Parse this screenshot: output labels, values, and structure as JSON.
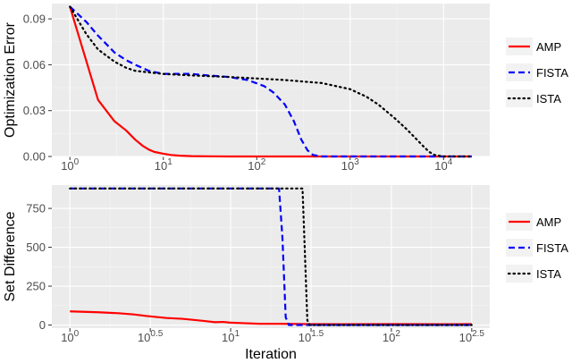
{
  "chart_data": [
    {
      "type": "line",
      "xscale": "log10",
      "xlim": [
        1,
        20000
      ],
      "ylim": [
        0,
        0.1
      ],
      "xticks": [
        {
          "value": 1,
          "base": "10",
          "exp": "0"
        },
        {
          "value": 10,
          "base": "10",
          "exp": "1"
        },
        {
          "value": 100,
          "base": "10",
          "exp": "2"
        },
        {
          "value": 1000,
          "base": "10",
          "exp": "3"
        },
        {
          "value": 10000,
          "base": "10",
          "exp": "4"
        }
      ],
      "yticks": [
        {
          "value": 0.0,
          "label": "0.00"
        },
        {
          "value": 0.03,
          "label": "0.03"
        },
        {
          "value": 0.06,
          "label": "0.06"
        },
        {
          "value": 0.09,
          "label": "0.09"
        }
      ],
      "xlabel": "",
      "ylabel": "Optimization Error",
      "grid": true,
      "legend": "right",
      "series": [
        {
          "name": "AMP",
          "color": "#ff0000",
          "dash": "solid",
          "x": [
            1,
            2,
            3,
            4,
            5,
            6,
            7,
            8,
            10,
            12,
            15,
            20,
            30,
            50,
            100,
            1000,
            20000
          ],
          "y": [
            0.098,
            0.037,
            0.023,
            0.017,
            0.011,
            0.007,
            0.0045,
            0.003,
            0.0018,
            0.001,
            0.0005,
            0.0002,
            0.0001,
            0,
            0,
            0,
            0
          ]
        },
        {
          "name": "FISTA",
          "color": "#0000ff",
          "dash": "dashed",
          "x": [
            1,
            1.5,
            2,
            2.5,
            3,
            4,
            5,
            7,
            10,
            15,
            20,
            30,
            50,
            80,
            120,
            150,
            200,
            250,
            300,
            350,
            400,
            500,
            1000,
            20000
          ],
          "y": [
            0.098,
            0.088,
            0.079,
            0.073,
            0.068,
            0.063,
            0.06,
            0.056,
            0.054,
            0.054,
            0.054,
            0.053,
            0.052,
            0.05,
            0.046,
            0.042,
            0.034,
            0.023,
            0.011,
            0.004,
            0.001,
            0,
            0,
            0
          ]
        },
        {
          "name": "ISTA",
          "color": "#000000",
          "dash": "dotted",
          "x": [
            1,
            1.5,
            2,
            3,
            4,
            5,
            7,
            10,
            20,
            50,
            100,
            200,
            500,
            1000,
            1500,
            2000,
            3000,
            4000,
            5000,
            6000,
            7000,
            8000,
            10000,
            20000
          ],
          "y": [
            0.098,
            0.08,
            0.07,
            0.062,
            0.058,
            0.056,
            0.055,
            0.054,
            0.053,
            0.052,
            0.051,
            0.05,
            0.048,
            0.044,
            0.039,
            0.034,
            0.025,
            0.018,
            0.012,
            0.007,
            0.003,
            0.001,
            0,
            0
          ]
        }
      ]
    },
    {
      "type": "line",
      "xscale": "log10",
      "xlim": [
        1,
        316
      ],
      "ylim": [
        -20,
        900
      ],
      "xticks": [
        {
          "value": 1,
          "base": "10",
          "exp": "0"
        },
        {
          "value": 3.1623,
          "base": "10",
          "exp": "0.5"
        },
        {
          "value": 10,
          "base": "10",
          "exp": "1"
        },
        {
          "value": 31.623,
          "base": "10",
          "exp": "1.5"
        },
        {
          "value": 100,
          "base": "10",
          "exp": "2"
        },
        {
          "value": 316.23,
          "base": "10",
          "exp": "2.5"
        }
      ],
      "yticks": [
        {
          "value": 0,
          "label": "0"
        },
        {
          "value": 250,
          "label": "250"
        },
        {
          "value": 500,
          "label": "500"
        },
        {
          "value": 750,
          "label": "750"
        }
      ],
      "xlabel": "Iteration",
      "ylabel": "Set Difference",
      "grid": true,
      "legend": "right",
      "series": [
        {
          "name": "AMP",
          "color": "#ff0000",
          "dash": "solid",
          "x": [
            1,
            1.5,
            2,
            2.5,
            3,
            4,
            5,
            6,
            7,
            8,
            9,
            10,
            12,
            15,
            20,
            30,
            50,
            100,
            200,
            316
          ],
          "y": [
            88,
            82,
            76,
            68,
            58,
            45,
            40,
            32,
            25,
            18,
            20,
            15,
            12,
            8,
            8,
            6,
            5,
            6,
            5,
            6
          ]
        },
        {
          "name": "FISTA",
          "color": "#0000ff",
          "dash": "dashed",
          "x": [
            1,
            20,
            21,
            22,
            23,
            60,
            316
          ],
          "y": [
            878,
            878,
            560,
            50,
            0,
            0,
            0
          ]
        },
        {
          "name": "ISTA",
          "color": "#000000",
          "dash": "dotted",
          "x": [
            1,
            28,
            29,
            30,
            31,
            60,
            316
          ],
          "y": [
            878,
            878,
            450,
            30,
            0,
            0,
            0
          ]
        }
      ]
    }
  ]
}
